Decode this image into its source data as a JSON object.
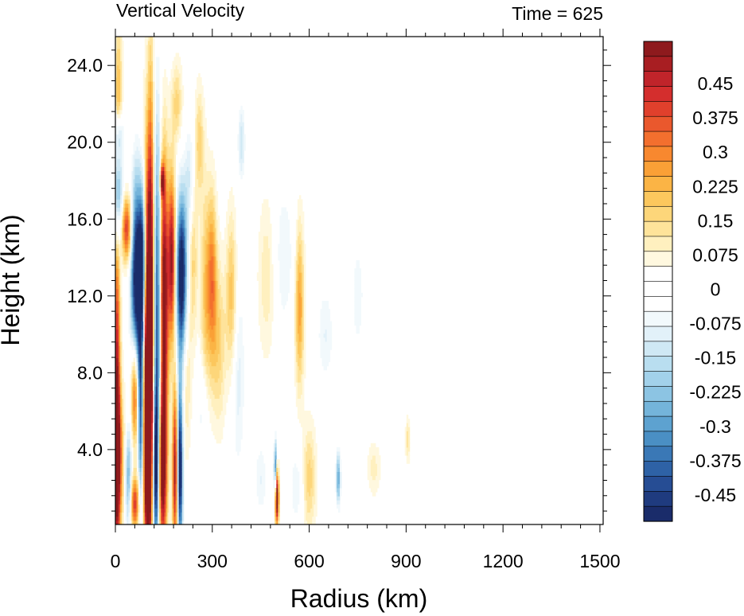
{
  "chart_data": {
    "type": "heatmap",
    "title_left": "Vertical Velocity",
    "title_right": "Time = 625",
    "xlabel": "Radius (km)",
    "ylabel": "Height (km)",
    "x_ticks": [
      "0",
      "300",
      "600",
      "900",
      "1200",
      "1500"
    ],
    "x_tick_values": [
      0,
      300,
      600,
      900,
      1200,
      1500
    ],
    "y_ticks": [
      "4.0",
      "8.0",
      "12.0",
      "16.0",
      "20.0",
      "24.0"
    ],
    "y_tick_values": [
      4,
      8,
      12,
      16,
      20,
      24
    ],
    "xlim": [
      0,
      1510
    ],
    "ylim": [
      0.1,
      25.5
    ],
    "colorbar": {
      "labels": [
        "0.45",
        "0.375",
        "0.3",
        "0.225",
        "0.15",
        "0.075",
        "0",
        "-0.075",
        "-0.15",
        "-0.225",
        "-0.3",
        "-0.375",
        "-0.45"
      ],
      "levels": [
        0.45,
        0.375,
        0.3,
        0.225,
        0.15,
        0.075,
        0,
        -0.075,
        -0.15,
        -0.225,
        -0.3,
        -0.375,
        -0.45
      ],
      "min": -0.525,
      "max": 0.525,
      "colors": [
        "#8e1a1d",
        "#a81e22",
        "#c0242a",
        "#d42e2d",
        "#e0402c",
        "#ea582d",
        "#f36f2e",
        "#f8882f",
        "#faa036",
        "#fbb445",
        "#fcc75d",
        "#fdd67a",
        "#fee39a",
        "#fff0bf",
        "#fff8df",
        "#ffffff",
        "#ffffff",
        "#ffffff",
        "#f2f9fc",
        "#e2f1f9",
        "#cfe8f4",
        "#b9def0",
        "#a2d1ea",
        "#8cc4e3",
        "#74b4da",
        "#5da2d0",
        "#4a8fc4",
        "#3a78b6",
        "#2e62a6",
        "#264d94",
        "#1f3b7f",
        "#1a2c6a"
      ]
    },
    "features": [
      {
        "r": 5,
        "z": 6,
        "dr": 7,
        "dz": 7,
        "w": 0.5
      },
      {
        "r": 8,
        "z": 3.5,
        "dr": 15,
        "dz": 2.5,
        "w": 0.3
      },
      {
        "r": 10,
        "z": 22,
        "dr": 8,
        "dz": 3,
        "w": 0.2
      },
      {
        "r": 8,
        "z": 17.5,
        "dr": 10,
        "dz": 2,
        "w": -0.4
      },
      {
        "r": 10,
        "z": 20.5,
        "dr": 10,
        "dz": 0.8,
        "w": -0.2
      },
      {
        "r": 35,
        "z": 15.5,
        "dr": 12,
        "dz": 1.2,
        "w": 0.4
      },
      {
        "r": 65,
        "z": 13,
        "dr": 12,
        "dz": 3.5,
        "w": -0.6
      },
      {
        "r": 85,
        "z": 13.5,
        "dr": 8,
        "dz": 3,
        "w": -0.6
      },
      {
        "r": 95,
        "z": 10,
        "dr": 9,
        "dz": 6,
        "w": 0.6
      },
      {
        "r": 110,
        "z": 11,
        "dr": 8,
        "dz": 8,
        "w": 0.6
      },
      {
        "r": 130,
        "z": 11,
        "dr": 9,
        "dz": 7,
        "w": -0.5
      },
      {
        "r": 150,
        "z": 12,
        "dr": 10,
        "dz": 5,
        "w": 0.6
      },
      {
        "r": 175,
        "z": 14,
        "dr": 8,
        "dz": 3,
        "w": 0.5
      },
      {
        "r": 205,
        "z": 13,
        "dr": 12,
        "dz": 3,
        "w": -0.6
      },
      {
        "r": 60,
        "z": 7,
        "dr": 8,
        "dz": 2,
        "w": 0.4
      },
      {
        "r": 80,
        "z": 6,
        "dr": 7,
        "dz": 3.5,
        "w": -0.5
      },
      {
        "r": 100,
        "z": 3.5,
        "dr": 8,
        "dz": 3,
        "w": 0.6
      },
      {
        "r": 125,
        "z": 3,
        "dr": 8,
        "dz": 3,
        "w": -0.5
      },
      {
        "r": 145,
        "z": 3,
        "dr": 10,
        "dz": 3,
        "w": 0.6
      },
      {
        "r": 185,
        "z": 3,
        "dr": 6,
        "dz": 3,
        "w": 0.5
      },
      {
        "r": 200,
        "z": 3,
        "dr": 6,
        "dz": 3,
        "w": -0.6
      },
      {
        "r": 145,
        "z": 18,
        "dr": 5,
        "dz": 0.6,
        "w": 0.4
      },
      {
        "r": 40,
        "z": 2.5,
        "dr": 8,
        "dz": 2,
        "w": -0.3
      },
      {
        "r": 60,
        "z": 1.2,
        "dr": 10,
        "dz": 1,
        "w": 0.4
      },
      {
        "r": 240,
        "z": 14,
        "dr": 10,
        "dz": 3,
        "w": 0.15
      },
      {
        "r": 280,
        "z": 12,
        "dr": 12,
        "dz": 4,
        "w": 0.18
      },
      {
        "r": 300,
        "z": 13,
        "dr": 10,
        "dz": 3,
        "w": 0.25
      },
      {
        "r": 320,
        "z": 9.5,
        "dr": 15,
        "dz": 3,
        "w": 0.15
      },
      {
        "r": 360,
        "z": 12,
        "dr": 12,
        "dz": 3,
        "w": 0.2
      },
      {
        "r": 260,
        "z": 20,
        "dr": 10,
        "dz": 2,
        "w": 0.15
      },
      {
        "r": 390,
        "z": 20,
        "dr": 8,
        "dz": 1.5,
        "w": -0.15
      },
      {
        "r": 380,
        "z": 8,
        "dr": 15,
        "dz": 4,
        "w": -0.12
      },
      {
        "r": 570,
        "z": 11.5,
        "dr": 10,
        "dz": 3,
        "w": 0.25
      },
      {
        "r": 470,
        "z": 13,
        "dr": 20,
        "dz": 3,
        "w": 0.1
      },
      {
        "r": 500,
        "z": 1.5,
        "dr": 4,
        "dz": 1,
        "w": 0.6
      },
      {
        "r": 495,
        "z": 3,
        "dr": 3,
        "dz": 1,
        "w": -0.4
      },
      {
        "r": 600,
        "z": 2.5,
        "dr": 15,
        "dz": 2,
        "w": 0.15
      },
      {
        "r": 560,
        "z": 2,
        "dr": 15,
        "dz": 1.5,
        "w": -0.1
      },
      {
        "r": 690,
        "z": 2.5,
        "dr": 5,
        "dz": 1,
        "w": -0.3
      },
      {
        "r": 450,
        "z": 2.5,
        "dr": 15,
        "dz": 1.5,
        "w": -0.1
      },
      {
        "r": 650,
        "z": 10,
        "dr": 20,
        "dz": 2,
        "w": -0.1
      },
      {
        "r": 750,
        "z": 12,
        "dr": 20,
        "dz": 3,
        "w": -0.08
      },
      {
        "r": 800,
        "z": 3,
        "dr": 15,
        "dz": 1,
        "w": 0.08
      },
      {
        "r": 905,
        "z": 4.5,
        "dr": 5,
        "dz": 0.8,
        "w": 0.12
      },
      {
        "r": 520,
        "z": 14,
        "dr": 25,
        "dz": 3,
        "w": -0.1
      },
      {
        "r": 190,
        "z": 22,
        "dr": 12,
        "dz": 1.5,
        "w": 0.15
      },
      {
        "r": 220,
        "z": 8,
        "dr": 10,
        "dz": 3,
        "w": 0.12
      },
      {
        "r": 270,
        "z": 6,
        "dr": 12,
        "dz": 2,
        "w": -0.1
      },
      {
        "r": 230,
        "z": 18,
        "dr": 10,
        "dz": 2,
        "w": -0.15
      }
    ]
  }
}
